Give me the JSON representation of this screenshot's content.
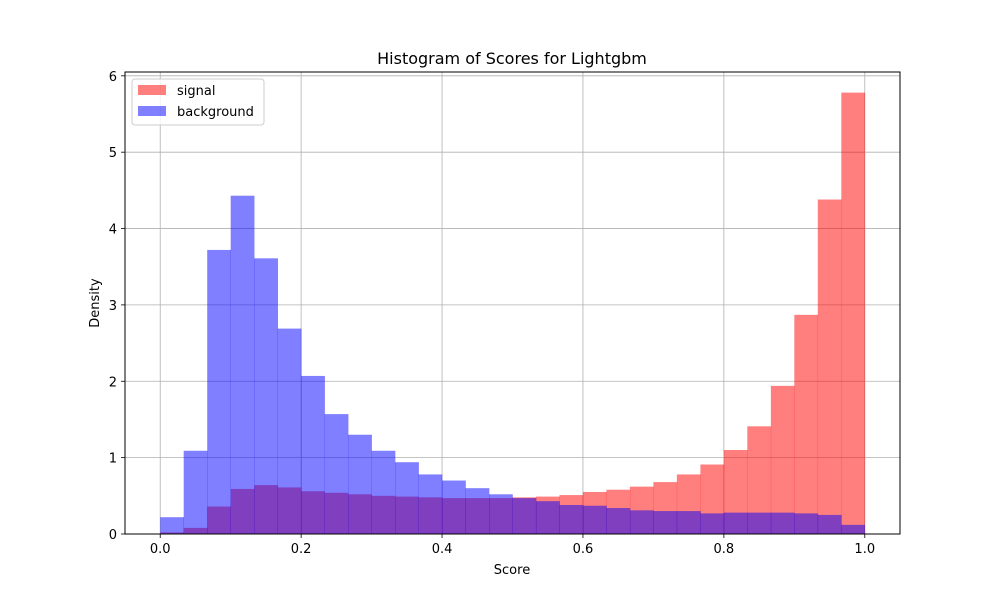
{
  "chart_data": {
    "type": "histogram",
    "title": "Histogram of Scores for Lightgbm",
    "xlabel": "Score",
    "ylabel": "Density",
    "xlim": [
      -0.05,
      1.05
    ],
    "ylim": [
      0,
      6.05
    ],
    "xticks": [
      "0.0",
      "0.2",
      "0.4",
      "0.6",
      "0.8",
      "1.0"
    ],
    "yticks": [
      "0",
      "1",
      "2",
      "3",
      "4",
      "5",
      "6"
    ],
    "grid": true,
    "legend_position": "top-left",
    "bin_edges": [
      0.0,
      0.0333,
      0.0667,
      0.1,
      0.1333,
      0.1667,
      0.2,
      0.2333,
      0.2667,
      0.3,
      0.3333,
      0.3667,
      0.4,
      0.4333,
      0.4667,
      0.5,
      0.5333,
      0.5667,
      0.6,
      0.6333,
      0.6667,
      0.7,
      0.7333,
      0.7667,
      0.8,
      0.8333,
      0.8667,
      0.9,
      0.9333,
      0.9667,
      1.0
    ],
    "series": [
      {
        "name": "signal",
        "color": "#ff0000",
        "alpha": 0.5,
        "values": [
          0.02,
          0.08,
          0.36,
          0.59,
          0.64,
          0.61,
          0.56,
          0.54,
          0.52,
          0.5,
          0.49,
          0.48,
          0.47,
          0.47,
          0.47,
          0.48,
          0.49,
          0.51,
          0.55,
          0.58,
          0.62,
          0.68,
          0.78,
          0.91,
          1.1,
          1.41,
          1.94,
          2.87,
          4.38,
          5.78
        ]
      },
      {
        "name": "background",
        "color": "#0000ff",
        "alpha": 0.5,
        "values": [
          0.22,
          1.09,
          3.72,
          4.43,
          3.61,
          2.69,
          2.07,
          1.57,
          1.3,
          1.09,
          0.94,
          0.78,
          0.7,
          0.6,
          0.52,
          0.47,
          0.43,
          0.38,
          0.37,
          0.34,
          0.31,
          0.3,
          0.3,
          0.27,
          0.28,
          0.28,
          0.28,
          0.27,
          0.25,
          0.12
        ]
      }
    ]
  }
}
